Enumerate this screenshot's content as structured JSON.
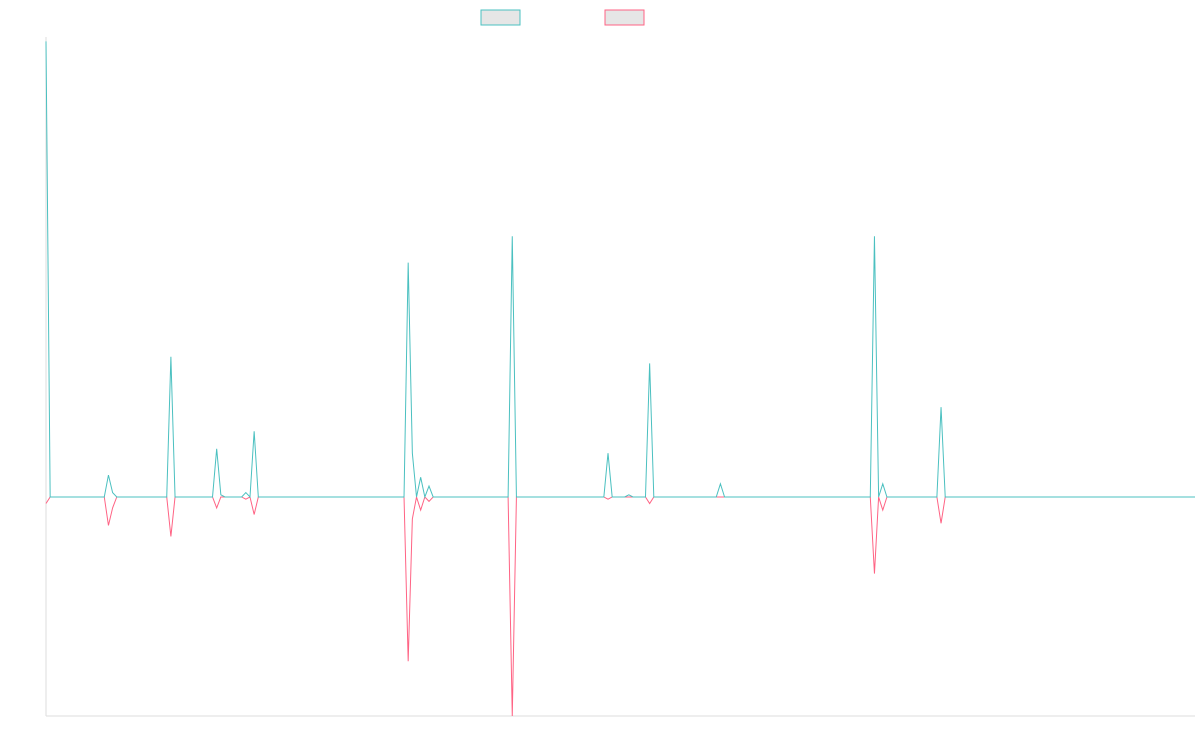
{
  "chart_data": {
    "type": "line",
    "title": "",
    "xlabel": "",
    "ylabel": "",
    "ylim": [
      -100,
      210
    ],
    "grid": false,
    "legend_position": "top-center",
    "colors": {
      "series_1": "#4bc0c0",
      "series_2": "#ff6384",
      "legend_fill": "#e6e6e6",
      "axis": "#dddddd"
    },
    "series": [
      {
        "values": [
          208,
          0,
          0,
          0,
          0,
          0,
          0,
          0,
          0,
          0,
          0,
          0,
          0,
          0,
          0,
          10,
          2,
          0,
          0,
          0,
          0,
          0,
          0,
          0,
          0,
          0,
          0,
          0,
          0,
          0,
          64,
          0,
          0,
          0,
          0,
          0,
          0,
          0,
          0,
          0,
          0,
          22,
          1,
          0,
          0,
          0,
          0,
          0,
          2,
          0,
          30,
          0,
          0,
          0,
          0,
          0,
          0,
          0,
          0,
          0,
          0,
          0,
          0,
          0,
          0,
          0,
          0,
          0,
          0,
          0,
          0,
          0,
          0,
          0,
          0,
          0,
          0,
          0,
          0,
          0,
          0,
          0,
          0,
          0,
          0,
          0,
          0,
          107,
          20,
          0,
          9,
          0,
          5,
          0,
          0,
          0,
          0,
          0,
          0,
          0,
          0,
          0,
          0,
          0,
          0,
          0,
          0,
          0,
          0,
          0,
          0,
          0,
          119,
          0,
          0,
          0,
          0,
          0,
          0,
          0,
          0,
          0,
          0,
          0,
          0,
          0,
          0,
          0,
          0,
          0,
          0,
          0,
          0,
          0,
          0,
          20,
          0,
          0,
          0,
          0,
          1,
          0,
          0,
          0,
          0,
          61,
          0,
          0,
          0,
          0,
          0,
          0,
          0,
          0,
          0,
          0,
          0,
          0,
          0,
          0,
          0,
          0,
          6,
          0,
          0,
          0,
          0,
          0,
          0,
          0,
          0,
          0,
          0,
          0,
          0,
          0,
          0,
          0,
          0,
          0,
          0,
          0,
          0,
          0,
          0,
          0,
          0,
          0,
          0,
          0,
          0,
          0,
          0,
          0,
          0,
          0,
          0,
          0,
          0,
          119,
          0,
          6,
          0,
          0,
          0,
          0,
          0,
          0,
          0,
          0,
          0,
          0,
          0,
          0,
          0,
          41,
          0,
          0,
          0,
          0,
          0,
          0,
          0,
          0,
          0,
          0,
          0,
          0,
          0,
          0,
          0,
          0,
          0,
          0,
          0,
          0,
          0,
          0,
          0,
          0,
          0,
          0,
          0,
          0,
          0,
          0,
          0,
          0,
          0,
          0,
          0,
          0,
          0,
          0,
          0,
          0,
          0,
          0,
          0,
          0,
          0,
          0,
          0,
          0,
          0,
          0,
          0,
          0,
          0,
          0,
          0,
          0,
          0,
          0,
          0,
          0,
          0
        ]
      },
      {
        "values": [
          -3,
          0,
          0,
          0,
          0,
          0,
          0,
          0,
          0,
          0,
          0,
          0,
          0,
          0,
          0,
          -13,
          -5,
          0,
          0,
          0,
          0,
          0,
          0,
          0,
          0,
          0,
          0,
          0,
          0,
          0,
          -18,
          0,
          0,
          0,
          0,
          0,
          0,
          0,
          0,
          0,
          0,
          -5,
          0,
          0,
          0,
          0,
          0,
          0,
          -1,
          0,
          -8,
          0,
          0,
          0,
          0,
          0,
          0,
          0,
          0,
          0,
          0,
          0,
          0,
          0,
          0,
          0,
          0,
          0,
          0,
          0,
          0,
          0,
          0,
          0,
          0,
          0,
          0,
          0,
          0,
          0,
          0,
          0,
          0,
          0,
          0,
          0,
          0,
          -75,
          -10,
          0,
          -6,
          0,
          -2,
          0,
          0,
          0,
          0,
          0,
          0,
          0,
          0,
          0,
          0,
          0,
          0,
          0,
          0,
          0,
          0,
          0,
          0,
          0,
          -100,
          0,
          0,
          0,
          0,
          0,
          0,
          0,
          0,
          0,
          0,
          0,
          0,
          0,
          0,
          0,
          0,
          0,
          0,
          0,
          0,
          0,
          0,
          -1,
          0,
          0,
          0,
          0,
          0,
          0,
          0,
          0,
          0,
          -3,
          0,
          0,
          0,
          0,
          0,
          0,
          0,
          0,
          0,
          0,
          0,
          0,
          0,
          0,
          0,
          0,
          0,
          0,
          0,
          0,
          0,
          0,
          0,
          0,
          0,
          0,
          0,
          0,
          0,
          0,
          0,
          0,
          0,
          0,
          0,
          0,
          0,
          0,
          0,
          0,
          0,
          0,
          0,
          0,
          0,
          0,
          0,
          0,
          0,
          0,
          0,
          0,
          0,
          -35,
          0,
          -6,
          0,
          0,
          0,
          0,
          0,
          0,
          0,
          0,
          0,
          0,
          0,
          0,
          0,
          -12,
          0,
          0,
          0,
          0,
          0,
          0,
          0,
          0,
          0,
          0,
          0,
          0,
          0,
          0,
          0,
          0,
          0,
          0,
          0,
          0,
          0,
          0,
          0,
          0,
          0,
          0,
          0,
          0,
          0,
          0,
          0,
          0,
          0,
          0,
          0,
          0,
          0,
          0,
          0,
          0,
          0,
          0,
          0,
          0,
          0,
          0,
          0,
          0,
          0,
          0,
          0,
          0,
          0,
          0,
          0,
          0,
          0,
          0,
          0,
          0,
          0
        ]
      }
    ]
  }
}
